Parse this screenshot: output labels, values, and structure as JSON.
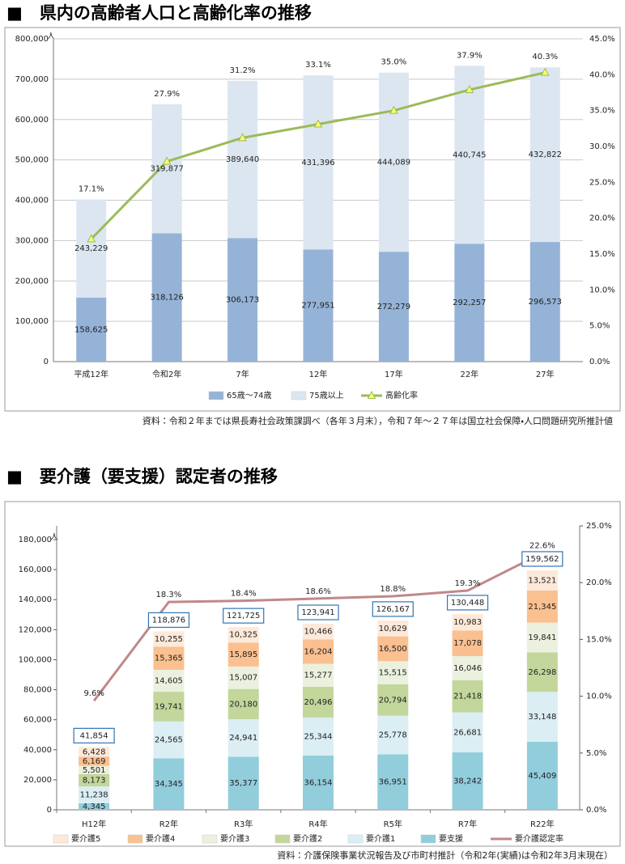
{
  "chart_data": [
    {
      "type": "bar",
      "stacked": true,
      "title": "■　県内の高齢者人口と高齢化率の推移",
      "y_unit": "人",
      "categories": [
        "平成12年",
        "令和2年",
        "7年",
        "12年",
        "17年",
        "22年",
        "27年"
      ],
      "series": [
        {
          "name": "65歳～74歳",
          "color": "#95b3d7",
          "values": [
            158625,
            318126,
            306173,
            277951,
            272279,
            292257,
            296573
          ],
          "value_labels": [
            "158,625",
            "318,126",
            "306,173",
            "277,951",
            "272,279",
            "292,257",
            "296,573"
          ]
        },
        {
          "name": "75歳以上",
          "color": "#dce6f1",
          "values": [
            243229,
            319877,
            389640,
            431396,
            444089,
            440745,
            432822
          ],
          "value_labels": [
            "243,229",
            "319,877",
            "389,640",
            "431,396",
            "444,089",
            "440,745",
            "432,822"
          ]
        },
        {
          "name": "高齢化率",
          "type": "line",
          "axis": "y2",
          "color": "#9bbb59",
          "marker": "triangle",
          "marker_color": "#ffff66",
          "values": [
            17.1,
            27.9,
            31.2,
            33.1,
            35.0,
            37.9,
            40.3
          ],
          "value_labels": [
            "17.1%",
            "27.9%",
            "31.2%",
            "33.1%",
            "35.0%",
            "37.9%",
            "40.3%"
          ]
        }
      ],
      "ylim": [
        0,
        800000
      ],
      "yticks": [
        0,
        {
          "value": 100000,
          "label": "100,000"
        },
        {
          "value": 200000,
          "label": "200,000"
        },
        {
          "value": 300000,
          "label": "300,000"
        },
        {
          "value": 400000,
          "label": "400,000"
        },
        {
          "value": 500000,
          "label": "500,000"
        },
        {
          "value": 600000,
          "label": "600,000"
        },
        {
          "value": 700000,
          "label": "700,000"
        },
        {
          "value": 800000,
          "label": "800,000"
        }
      ],
      "y2lim": [
        0,
        45
      ],
      "y2ticks": [
        {
          "value": 0,
          "label": "0.0%"
        },
        {
          "value": 5,
          "label": "5.0%"
        },
        {
          "value": 10,
          "label": "10.0%"
        },
        {
          "value": 15,
          "label": "15.0%"
        },
        {
          "value": 20,
          "label": "20.0%"
        },
        {
          "value": 25,
          "label": "25.0%"
        },
        {
          "value": 30,
          "label": "30.0%"
        },
        {
          "value": 35,
          "label": "35.0%"
        },
        {
          "value": 40,
          "label": "40.0%"
        },
        {
          "value": 45,
          "label": "45.0%"
        }
      ],
      "grid": true,
      "source": "資料：令和２年までは県長寿社会政策課調べ（各年３月末），令和７年～２７年は国立社会保障・人口問題研究所推計値"
    },
    {
      "type": "bar",
      "stacked": true,
      "title": "■　要介護（要支援）認定者の推移",
      "y_unit": "人",
      "categories": [
        "H12年",
        "R2年",
        "R3年",
        "R4年",
        "R5年",
        "R7年",
        "R22年"
      ],
      "series": [
        {
          "name": "要支援",
          "color": "#92cddc",
          "values": [
            4345,
            34345,
            35377,
            36154,
            36951,
            38242,
            45409
          ],
          "value_labels": [
            "4,345",
            "34,345",
            "35,377",
            "36,154",
            "36,951",
            "38,242",
            "45,409"
          ]
        },
        {
          "name": "要介護1",
          "color": "#dbeef4",
          "values": [
            11238,
            24565,
            24941,
            25344,
            25778,
            26681,
            33148
          ],
          "value_labels": [
            "11,238",
            "24,565",
            "24,941",
            "25,344",
            "25,778",
            "26,681",
            "33,148"
          ]
        },
        {
          "name": "要介護2",
          "color": "#c3d69b",
          "values": [
            8173,
            19741,
            20180,
            20496,
            20794,
            21418,
            26298
          ],
          "value_labels": [
            "8,173",
            "19,741",
            "20,180",
            "20,496",
            "20,794",
            "21,418",
            "26,298"
          ]
        },
        {
          "name": "要介護3",
          "color": "#ebf1de",
          "values": [
            5501,
            14605,
            15007,
            15277,
            15515,
            16046,
            19841
          ],
          "value_labels": [
            "5,501",
            "14,605",
            "15,007",
            "15,277",
            "15,515",
            "16,046",
            "19,841"
          ]
        },
        {
          "name": "要介護4",
          "color": "#fac090",
          "values": [
            6169,
            15365,
            15895,
            16204,
            16500,
            17078,
            21345
          ],
          "value_labels": [
            "6,169",
            "15,365",
            "15,895",
            "16,204",
            "16,500",
            "17,078",
            "21,345"
          ]
        },
        {
          "name": "要介護5",
          "color": "#fde9d9",
          "values": [
            6428,
            10255,
            10325,
            10466,
            10629,
            10983,
            13521
          ],
          "value_labels": [
            "6,428",
            "10,255",
            "10,325",
            "10,466",
            "10,629",
            "10,983",
            "13,521"
          ]
        },
        {
          "name": "要介護認定率",
          "type": "line",
          "axis": "y2",
          "color": "#c0888a",
          "values": [
            9.6,
            18.3,
            18.4,
            18.6,
            18.8,
            19.3,
            22.6
          ],
          "value_labels": [
            "9.6%",
            "18.3%",
            "18.4%",
            "18.6%",
            "18.8%",
            "19.3%",
            "22.6%"
          ]
        }
      ],
      "totals": {
        "values": [
          41854,
          118876,
          121725,
          123941,
          126167,
          130448,
          159562
        ],
        "value_labels": [
          "41,854",
          "118,876",
          "121,725",
          "123,941",
          "126,167",
          "130,448",
          "159,562"
        ],
        "color": "#2e75b6"
      },
      "ylim": [
        0,
        180000
      ],
      "yticks": [
        0,
        {
          "value": 20000,
          "label": "20,000"
        },
        {
          "value": 40000,
          "label": "40,000"
        },
        {
          "value": 60000,
          "label": "60,000"
        },
        {
          "value": 80000,
          "label": "80,000"
        },
        {
          "value": 100000,
          "label": "100,000"
        },
        {
          "value": 120000,
          "label": "120,000"
        },
        {
          "value": 140000,
          "label": "140,000"
        },
        {
          "value": 160000,
          "label": "160,000"
        },
        {
          "value": 180000,
          "label": "180,000"
        }
      ],
      "y2lim": [
        0,
        25
      ],
      "y2ticks": [
        {
          "value": 0,
          "label": "0.0%"
        },
        {
          "value": 5,
          "label": "5.0%"
        },
        {
          "value": 10,
          "label": "10.0%"
        },
        {
          "value": 15,
          "label": "15.0%"
        },
        {
          "value": 20,
          "label": "20.0%"
        },
        {
          "value": 25,
          "label": "25.0%"
        }
      ],
      "grid": false,
      "source": "資料：介護保険事業状況報告及び市町村推計（令和2年(実績)は令和2年3月末現在）"
    }
  ]
}
